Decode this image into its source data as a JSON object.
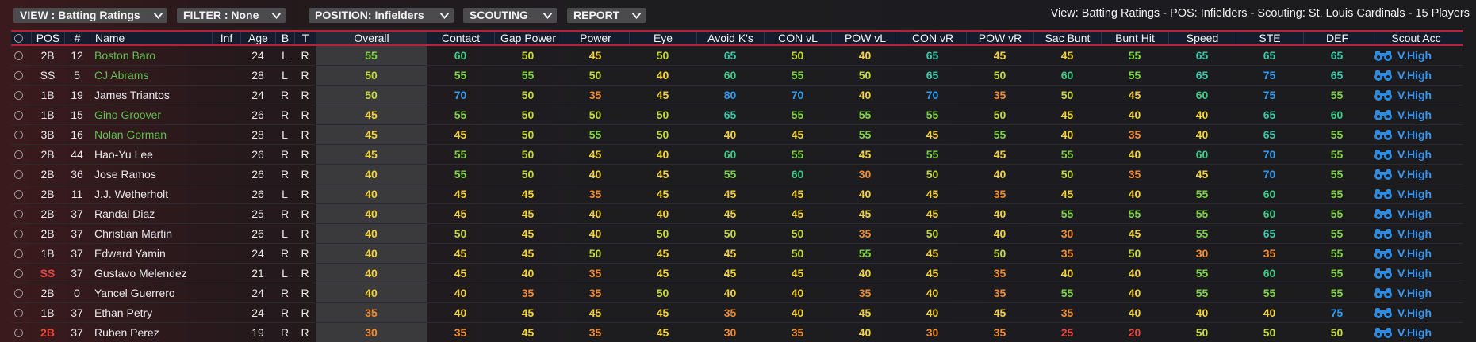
{
  "toolbar": {
    "buttons": [
      "VIEW : Batting Ratings",
      "FILTER : None",
      "POSITION: Infielders",
      "SCOUTING",
      "REPORT"
    ]
  },
  "summary": "View: Batting Ratings - POS: Infielders - Scouting: St. Louis Cardinals - 15 Players",
  "table": {
    "columns": [
      "POS",
      "#",
      "Name",
      "Inf",
      "Age",
      "B",
      "T",
      "Overall",
      "Contact",
      "Gap Power",
      "Power",
      "Eye",
      "Avoid K's",
      "CON vL",
      "POW vL",
      "CON vR",
      "POW vR",
      "Sac Bunt",
      "Bunt Hit",
      "Speed",
      "STE",
      "DEF",
      "Scout Acc"
    ],
    "rows": [
      {
        "pos": "2B",
        "number": 12,
        "name": "Boston Baro",
        "name_color": "#5fbf4f",
        "age": 24,
        "bats": "L",
        "throws": "R",
        "ratings": [
          55,
          60,
          50,
          45,
          50,
          65,
          50,
          40,
          65,
          45,
          45,
          55,
          65,
          65,
          65
        ],
        "scout_acc": "V.High"
      },
      {
        "pos": "SS",
        "number": 5,
        "name": "CJ Abrams",
        "name_color": "#5fbf4f",
        "age": 28,
        "bats": "L",
        "throws": "R",
        "ratings": [
          50,
          55,
          55,
          50,
          40,
          60,
          55,
          50,
          65,
          50,
          60,
          55,
          65,
          75,
          65
        ],
        "scout_acc": "V.High"
      },
      {
        "pos": "1B",
        "number": 19,
        "name": "James Triantos",
        "age": 24,
        "bats": "R",
        "throws": "R",
        "ratings": [
          50,
          70,
          50,
          35,
          45,
          80,
          70,
          40,
          70,
          35,
          50,
          45,
          60,
          75,
          55
        ],
        "scout_acc": "V.High"
      },
      {
        "pos": "1B",
        "number": 15,
        "name": "Gino Groover",
        "name_color": "#5fbf4f",
        "age": 26,
        "bats": "R",
        "throws": "R",
        "ratings": [
          45,
          55,
          50,
          50,
          50,
          65,
          55,
          55,
          55,
          50,
          45,
          40,
          40,
          65,
          60
        ],
        "scout_acc": "V.High"
      },
      {
        "pos": "3B",
        "number": 16,
        "name": "Nolan Gorman",
        "name_color": "#5fbf4f",
        "age": 28,
        "bats": "L",
        "throws": "R",
        "ratings": [
          45,
          45,
          50,
          55,
          50,
          40,
          45,
          55,
          45,
          55,
          40,
          35,
          40,
          65,
          55
        ],
        "scout_acc": "V.High"
      },
      {
        "pos": "2B",
        "number": 44,
        "name": "Hao-Yu Lee",
        "age": 26,
        "bats": "R",
        "throws": "R",
        "ratings": [
          45,
          55,
          50,
          45,
          40,
          60,
          55,
          45,
          55,
          45,
          55,
          40,
          60,
          70,
          55
        ],
        "scout_acc": "V.High"
      },
      {
        "pos": "2B",
        "number": 36,
        "name": "Jose Ramos",
        "age": 26,
        "bats": "R",
        "throws": "R",
        "ratings": [
          40,
          55,
          50,
          40,
          45,
          55,
          60,
          30,
          50,
          40,
          50,
          35,
          45,
          70,
          55
        ],
        "scout_acc": "V.High"
      },
      {
        "pos": "2B",
        "number": 11,
        "name": "J.J. Wetherholt",
        "age": 26,
        "bats": "L",
        "throws": "R",
        "ratings": [
          40,
          45,
          45,
          35,
          45,
          45,
          45,
          40,
          45,
          35,
          45,
          40,
          55,
          60,
          55
        ],
        "scout_acc": "V.High"
      },
      {
        "pos": "2B",
        "number": 37,
        "name": "Randal Diaz",
        "age": 25,
        "bats": "R",
        "throws": "R",
        "ratings": [
          40,
          45,
          45,
          40,
          40,
          45,
          45,
          45,
          45,
          40,
          55,
          55,
          55,
          60,
          55
        ],
        "scout_acc": "V.High"
      },
      {
        "pos": "2B",
        "number": 37,
        "name": "Christian Martin",
        "age": 26,
        "bats": "L",
        "throws": "R",
        "ratings": [
          40,
          50,
          45,
          40,
          50,
          50,
          50,
          35,
          50,
          40,
          30,
          45,
          55,
          65,
          55
        ],
        "scout_acc": "V.High"
      },
      {
        "pos": "1B",
        "number": 37,
        "name": "Edward Yamin",
        "age": 24,
        "bats": "R",
        "throws": "R",
        "ratings": [
          40,
          45,
          45,
          50,
          45,
          45,
          50,
          55,
          45,
          50,
          35,
          50,
          30,
          35,
          55
        ],
        "scout_acc": "V.High"
      },
      {
        "pos": "SS",
        "pos_color": "#e8453c",
        "number": 37,
        "name": "Gustavo Melendez",
        "age": 21,
        "bats": "L",
        "throws": "R",
        "ratings": [
          40,
          45,
          40,
          35,
          45,
          45,
          45,
          40,
          45,
          35,
          40,
          40,
          55,
          60,
          55
        ],
        "scout_acc": "V.High"
      },
      {
        "pos": "2B",
        "number": 0,
        "name": "Yancel Guerrero",
        "age": 24,
        "bats": "R",
        "throws": "R",
        "ratings": [
          40,
          40,
          35,
          35,
          50,
          40,
          40,
          35,
          40,
          35,
          55,
          40,
          55,
          55,
          55
        ],
        "scout_acc": "V.High"
      },
      {
        "pos": "1B",
        "number": 37,
        "name": "Ethan Petry",
        "age": 24,
        "bats": "R",
        "throws": "R",
        "ratings": [
          35,
          40,
          45,
          45,
          45,
          35,
          40,
          45,
          40,
          45,
          35,
          40,
          40,
          40,
          75
        ],
        "scout_acc": "V.High"
      },
      {
        "pos": "2B",
        "pos_color": "#e8453c",
        "number": 37,
        "name": "Ruben Perez",
        "age": 19,
        "bats": "R",
        "throws": "R",
        "ratings": [
          30,
          35,
          45,
          35,
          45,
          30,
          35,
          40,
          30,
          35,
          25,
          20,
          50,
          50,
          50
        ],
        "scout_acc": "V.High"
      }
    ]
  }
}
